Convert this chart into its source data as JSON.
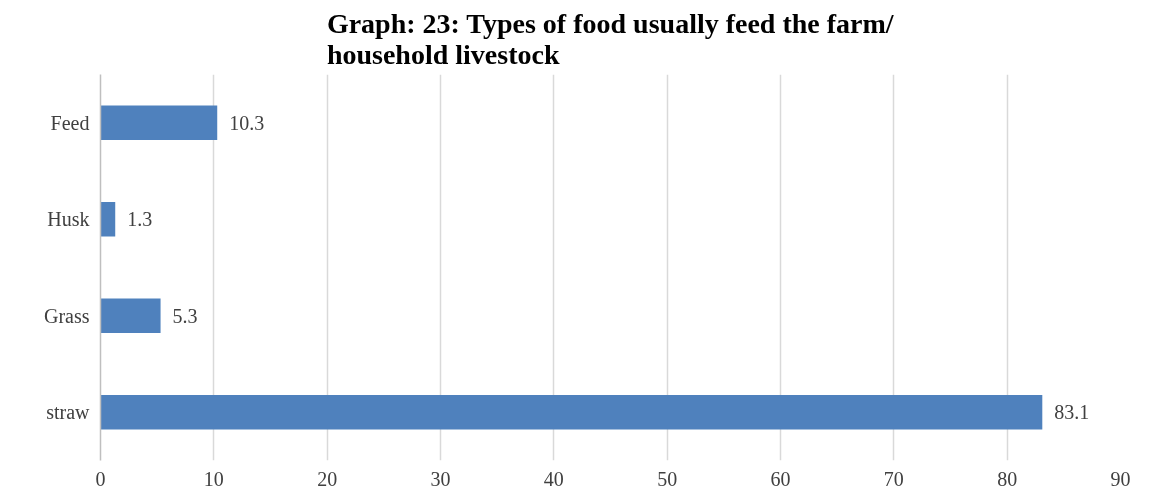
{
  "chart_data": {
    "type": "bar",
    "orientation": "horizontal",
    "title": "Graph: 23: Types of food usually feed the farm/ household livestock",
    "categories": [
      "Feed",
      "Husk",
      "Grass",
      "straw"
    ],
    "values": [
      10.3,
      1.3,
      5.3,
      83.1
    ],
    "color": "#4f81bd",
    "xlim": [
      0,
      90
    ],
    "xticks": [
      0,
      10,
      20,
      30,
      40,
      50,
      60,
      70,
      80,
      90
    ],
    "grid": "x",
    "data_labels": true
  }
}
